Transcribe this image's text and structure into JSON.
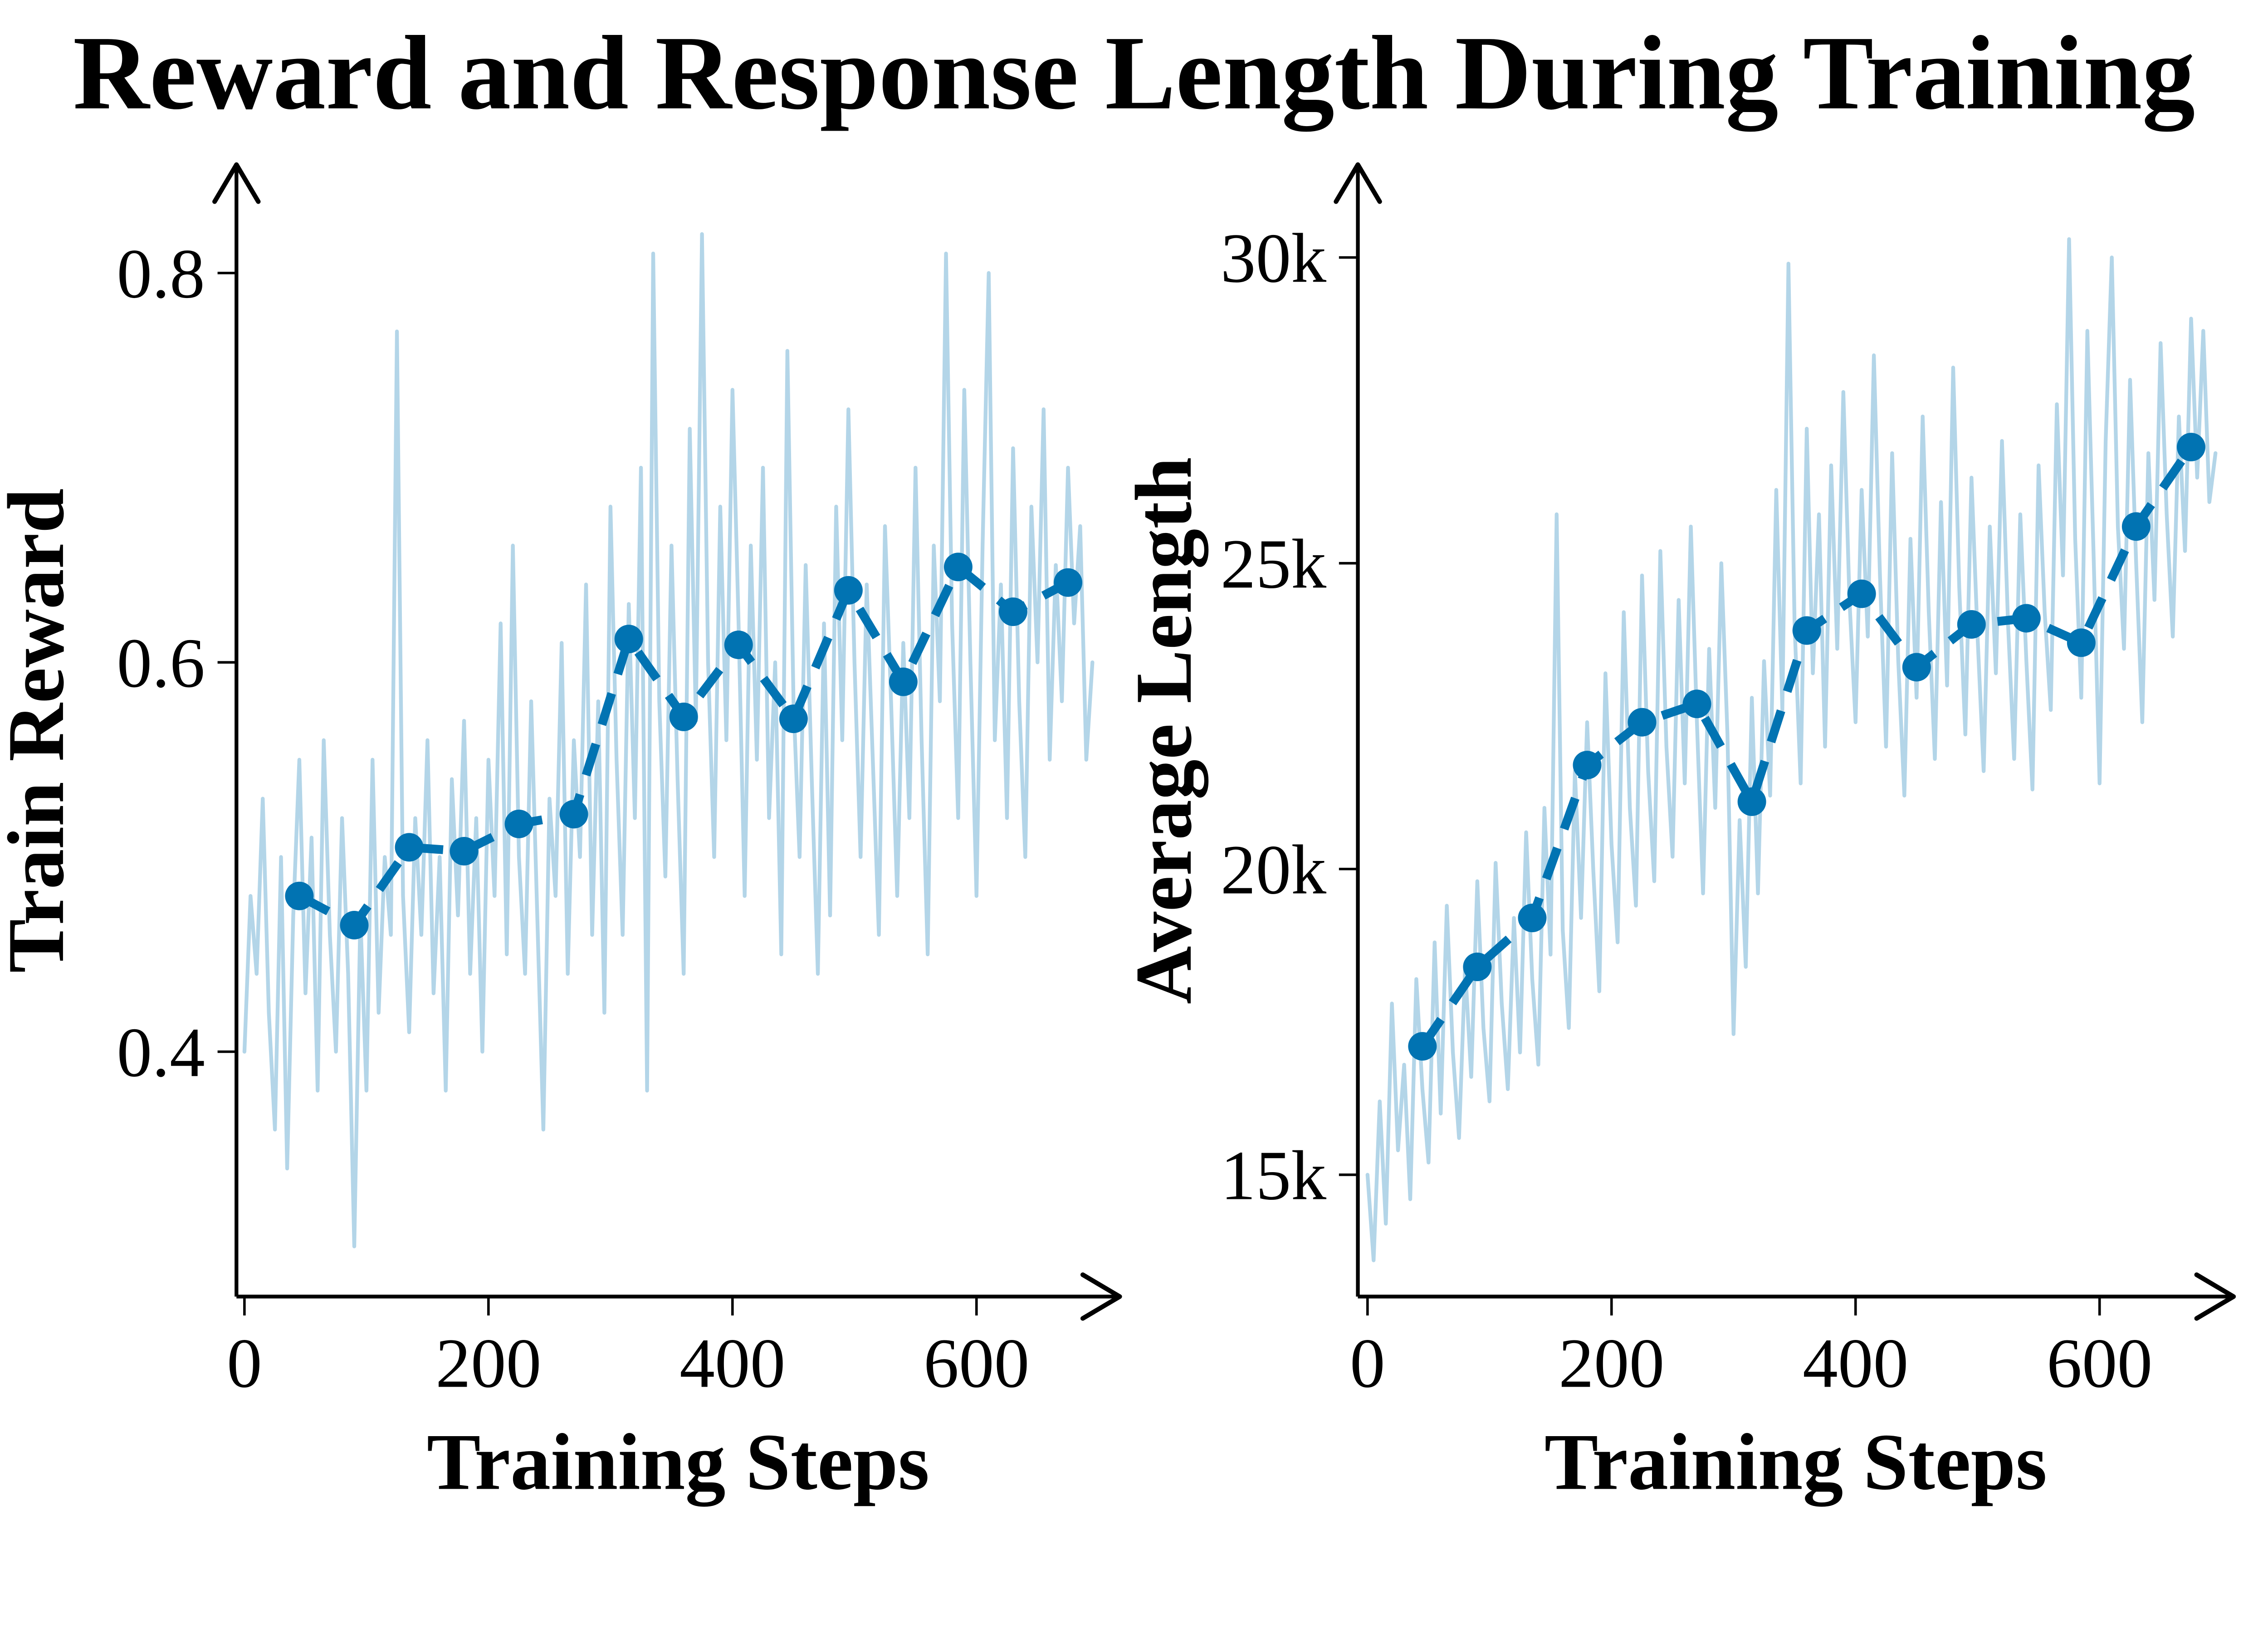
{
  "title": "Reward and Response Length During Training",
  "colors": {
    "smoothed": "#0173b2",
    "raw": "#b3d5e8",
    "axis": "#000000",
    "text": "#000000",
    "background": "#ffffff"
  },
  "chart_data": [
    {
      "type": "line",
      "panel": "left",
      "title": "",
      "xlabel": "Training Steps",
      "ylabel": "Train Reward",
      "xlim": [
        0,
        720
      ],
      "ylim": [
        0.27,
        0.86
      ],
      "grid": false,
      "legend": null,
      "xticks": {
        "values": [
          0,
          200,
          400,
          600
        ],
        "labels": [
          "0",
          "200",
          "400",
          "600"
        ]
      },
      "yticks": {
        "values": [
          0.4,
          0.6,
          0.8
        ],
        "labels": [
          "0.4",
          "0.6",
          "0.8"
        ]
      },
      "series": [
        {
          "name": "train reward per step",
          "role": "raw",
          "style": "solid",
          "x_start": 0,
          "x_step": 5,
          "y": [
            0.4,
            0.48,
            0.44,
            0.53,
            0.42,
            0.36,
            0.5,
            0.34,
            0.47,
            0.55,
            0.43,
            0.51,
            0.38,
            0.56,
            0.46,
            0.4,
            0.52,
            0.44,
            0.3,
            0.47,
            0.38,
            0.55,
            0.42,
            0.5,
            0.46,
            0.77,
            0.48,
            0.41,
            0.52,
            0.46,
            0.56,
            0.43,
            0.5,
            0.38,
            0.54,
            0.47,
            0.57,
            0.44,
            0.52,
            0.4,
            0.55,
            0.48,
            0.62,
            0.45,
            0.66,
            0.5,
            0.44,
            0.58,
            0.47,
            0.36,
            0.53,
            0.48,
            0.61,
            0.44,
            0.56,
            0.5,
            0.64,
            0.46,
            0.58,
            0.42,
            0.68,
            0.55,
            0.46,
            0.63,
            0.52,
            0.7,
            0.38,
            0.81,
            0.58,
            0.49,
            0.66,
            0.54,
            0.44,
            0.72,
            0.57,
            0.82,
            0.6,
            0.5,
            0.68,
            0.56,
            0.74,
            0.62,
            0.48,
            0.66,
            0.55,
            0.7,
            0.52,
            0.6,
            0.45,
            0.76,
            0.58,
            0.5,
            0.65,
            0.54,
            0.44,
            0.62,
            0.47,
            0.68,
            0.56,
            0.73,
            0.6,
            0.5,
            0.64,
            0.55,
            0.46,
            0.67,
            0.58,
            0.48,
            0.61,
            0.52,
            0.7,
            0.56,
            0.45,
            0.66,
            0.58,
            0.81,
            0.62,
            0.52,
            0.74,
            0.6,
            0.48,
            0.66,
            0.8,
            0.56,
            0.64,
            0.52,
            0.71,
            0.58,
            0.5,
            0.68,
            0.6,
            0.73,
            0.55,
            0.65,
            0.58,
            0.7,
            0.62,
            0.67,
            0.55,
            0.6
          ]
        },
        {
          "name": "train reward smoothed",
          "role": "smoothed",
          "style": "dashed",
          "marker": "circle",
          "x_start": 45,
          "x_step": 45,
          "y": [
            0.48,
            0.465,
            0.505,
            0.503,
            0.517,
            0.522,
            0.612,
            0.572,
            0.609,
            0.571,
            0.637,
            0.59,
            0.649,
            0.626,
            0.641
          ]
        }
      ]
    },
    {
      "type": "line",
      "panel": "right",
      "title": "",
      "xlabel": "Training Steps",
      "ylabel": "Average Length",
      "xlim": [
        0,
        720
      ],
      "ylim": [
        13000,
        31500
      ],
      "grid": false,
      "legend": null,
      "xticks": {
        "values": [
          0,
          200,
          400,
          600
        ],
        "labels": [
          "0",
          "200",
          "400",
          "600"
        ]
      },
      "yticks": {
        "values": [
          15000,
          20000,
          25000,
          30000
        ],
        "labels": [
          "15k",
          "20k",
          "25k",
          "30k"
        ]
      },
      "series": [
        {
          "name": "average response length per step",
          "role": "raw",
          "style": "solid",
          "x_start": 0,
          "x_step": 5,
          "y": [
            15000,
            13600,
            16200,
            14200,
            17800,
            15400,
            16800,
            14600,
            18200,
            16400,
            15200,
            18800,
            16000,
            19400,
            17000,
            15600,
            18400,
            16600,
            19800,
            17400,
            16200,
            20100,
            17800,
            16400,
            19200,
            17000,
            20600,
            18200,
            16800,
            21000,
            18600,
            25800,
            19000,
            17400,
            21600,
            19200,
            22400,
            20000,
            18000,
            23200,
            20400,
            18800,
            24200,
            21000,
            19400,
            24800,
            21600,
            19800,
            25200,
            22000,
            20200,
            24400,
            21400,
            25600,
            22400,
            19600,
            23600,
            21000,
            25000,
            22200,
            17300,
            20800,
            18400,
            22800,
            19600,
            23400,
            21200,
            26200,
            22600,
            29900,
            24000,
            21400,
            27200,
            23200,
            25800,
            22000,
            26600,
            23600,
            27800,
            24400,
            22400,
            26200,
            23800,
            28400,
            24800,
            22000,
            26800,
            23400,
            21200,
            25400,
            22800,
            27400,
            24200,
            21800,
            26000,
            23000,
            28200,
            24600,
            22200,
            26400,
            23800,
            21600,
            25600,
            23200,
            27000,
            24000,
            21800,
            25800,
            23400,
            21300,
            26600,
            24200,
            22600,
            27600,
            24800,
            30300,
            25400,
            22800,
            28800,
            25200,
            21400,
            27000,
            30000,
            25600,
            23600,
            28000,
            25000,
            22400,
            26800,
            24400,
            28600,
            25800,
            23800,
            27400,
            25200,
            29000,
            26400,
            28800,
            26000,
            26800
          ]
        },
        {
          "name": "average response length smoothed",
          "role": "smoothed",
          "style": "dashed",
          "marker": "circle",
          "x_start": 45,
          "x_step": 45,
          "y": [
            17100,
            18400,
            19200,
            21700,
            22400,
            22700,
            21100,
            23900,
            24500,
            23300,
            24000,
            24100,
            23700,
            25600,
            26900
          ]
        }
      ]
    }
  ]
}
